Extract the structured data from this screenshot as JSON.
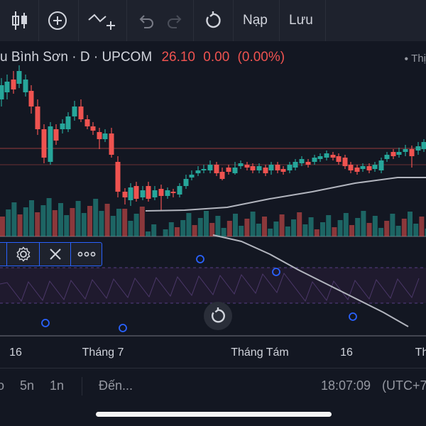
{
  "toolbar": {
    "reload_label": "Nạp",
    "save_label": "Lưu",
    "icons": [
      "candles-icon",
      "add-indicator-icon",
      "compare-icon",
      "undo-icon",
      "redo-icon",
      "reset-icon"
    ]
  },
  "symbol": {
    "name": "u Bình Sơn",
    "interval": "D",
    "exchange": "UPCOM",
    "price": "26.10",
    "change": "0.00",
    "change_pct": "(0.00%)",
    "right_label": "Thị"
  },
  "colors": {
    "background": "#131722",
    "up": "#26a69a",
    "down": "#ef5350",
    "accent": "#2962ff"
  },
  "x_axis": {
    "labels": [
      "16",
      "Tháng 7",
      "Tháng Tám",
      "16",
      "Th"
    ]
  },
  "bottom_bar": {
    "ranges": [
      "o",
      "5n",
      "1n"
    ],
    "goto_label": "Đến...",
    "time": "18:07:09",
    "timezone": "(UTC+7"
  },
  "chart_data": {
    "type": "candlestick",
    "series_name": "Bình Sơn",
    "volume_up_color": "#26a69a",
    "volume_down_color": "#ef5350"
  }
}
